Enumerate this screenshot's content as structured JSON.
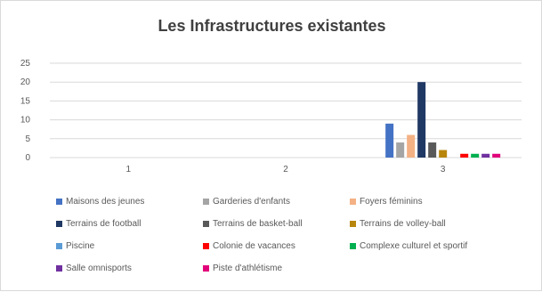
{
  "chart_data": {
    "type": "bar",
    "title": "Les Infrastructures existantes",
    "categories": [
      "1",
      "2",
      "3"
    ],
    "ylim": [
      0,
      25
    ],
    "yticks": [
      0,
      5,
      10,
      15,
      20,
      25
    ],
    "grid": true,
    "legend_position": "bottom",
    "series": [
      {
        "name": "Maisons des jeunes",
        "color": "#4472c4",
        "values": [
          0,
          0,
          9
        ]
      },
      {
        "name": "Garderies d'enfants",
        "color": "#a5a5a5",
        "values": [
          0,
          0,
          4
        ]
      },
      {
        "name": "Foyers féminins",
        "color": "#f4b183",
        "values": [
          0,
          0,
          6
        ]
      },
      {
        "name": "Terrains de football",
        "color": "#1f3864",
        "values": [
          0,
          0,
          20
        ]
      },
      {
        "name": "Terrains de basket-ball",
        "color": "#595959",
        "values": [
          0,
          0,
          4
        ]
      },
      {
        "name": "Terrains de volley-ball",
        "color": "#b8860b",
        "values": [
          0,
          0,
          2
        ]
      },
      {
        "name": "Piscine",
        "color": "#5b9bd5",
        "values": [
          0,
          0,
          0
        ]
      },
      {
        "name": "Colonie de vacances",
        "color": "#ff0000",
        "values": [
          0,
          0,
          1
        ]
      },
      {
        "name": "Complexe culturel et sportif",
        "color": "#00b050",
        "values": [
          0,
          0,
          1
        ]
      },
      {
        "name": "Salle omnisports",
        "color": "#7030a0",
        "values": [
          0,
          0,
          1
        ]
      },
      {
        "name": "Piste d'athlétisme",
        "color": "#e2007a",
        "values": [
          0,
          0,
          1
        ]
      }
    ]
  }
}
